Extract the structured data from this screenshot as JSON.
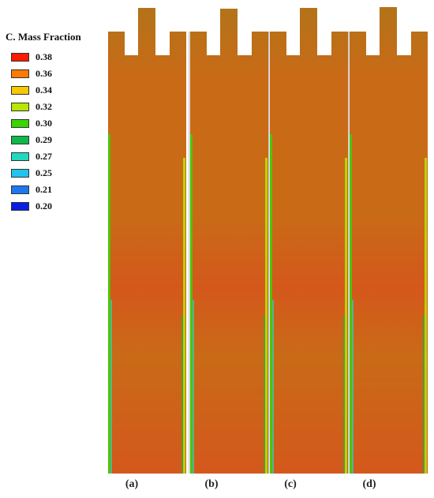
{
  "legend": {
    "title": "C. Mass Fraction",
    "entries": [
      {
        "value": "0.38",
        "color": "#ff1a00"
      },
      {
        "value": "0.36",
        "color": "#ff7a00"
      },
      {
        "value": "0.34",
        "color": "#f5c800"
      },
      {
        "value": "0.32",
        "color": "#b8e600"
      },
      {
        "value": "0.30",
        "color": "#3ad400"
      },
      {
        "value": "0.29",
        "color": "#10b84a"
      },
      {
        "value": "0.27",
        "color": "#20d8c0"
      },
      {
        "value": "0.25",
        "color": "#20c4ee"
      },
      {
        "value": "0.21",
        "color": "#1c78f0"
      },
      {
        "value": "0.20",
        "color": "#0a1ee0"
      }
    ]
  },
  "panels": [
    {
      "label": "(a)"
    },
    {
      "label": "(b)"
    },
    {
      "label": "(c)"
    },
    {
      "label": "(d)"
    }
  ],
  "colors": {
    "field": "#c96a17",
    "field_light": "#b37319",
    "field_dark": "#d4581c",
    "divider": "#c8c8c8"
  }
}
